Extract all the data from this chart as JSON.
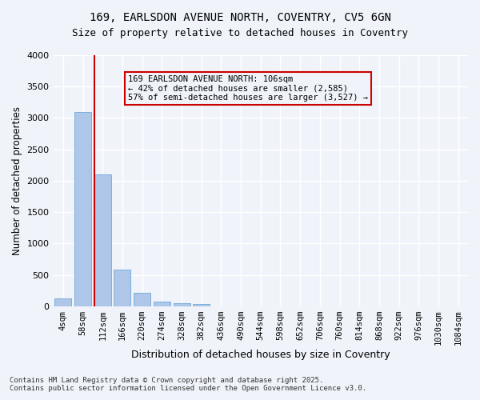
{
  "title1": "169, EARLSDON AVENUE NORTH, COVENTRY, CV5 6GN",
  "title2": "Size of property relative to detached houses in Coventry",
  "xlabel": "Distribution of detached houses by size in Coventry",
  "ylabel": "Number of detached properties",
  "categories": [
    "4sqm",
    "58sqm",
    "112sqm",
    "166sqm",
    "220sqm",
    "274sqm",
    "328sqm",
    "382sqm",
    "436sqm",
    "490sqm",
    "544sqm",
    "598sqm",
    "652sqm",
    "706sqm",
    "760sqm",
    "814sqm",
    "868sqm",
    "922sqm",
    "976sqm",
    "1030sqm",
    "1084sqm"
  ],
  "values": [
    130,
    3100,
    2100,
    580,
    220,
    80,
    50,
    40,
    0,
    0,
    0,
    0,
    0,
    0,
    0,
    0,
    0,
    0,
    0,
    0,
    0
  ],
  "bar_color": "#aec6e8",
  "bar_edge_color": "#5a9fd4",
  "vline_x": 2,
  "vline_color": "#cc0000",
  "annotation_text": "169 EARLSDON AVENUE NORTH: 106sqm\n← 42% of detached houses are smaller (2,585)\n57% of semi-detached houses are larger (3,527) →",
  "annotation_box_color": "#cc0000",
  "ylim": [
    0,
    4000
  ],
  "yticks": [
    0,
    500,
    1000,
    1500,
    2000,
    2500,
    3000,
    3500,
    4000
  ],
  "background_color": "#f0f4fa",
  "grid_color": "#ffffff",
  "footer1": "Contains HM Land Registry data © Crown copyright and database right 2025.",
  "footer2": "Contains public sector information licensed under the Open Government Licence v3.0."
}
